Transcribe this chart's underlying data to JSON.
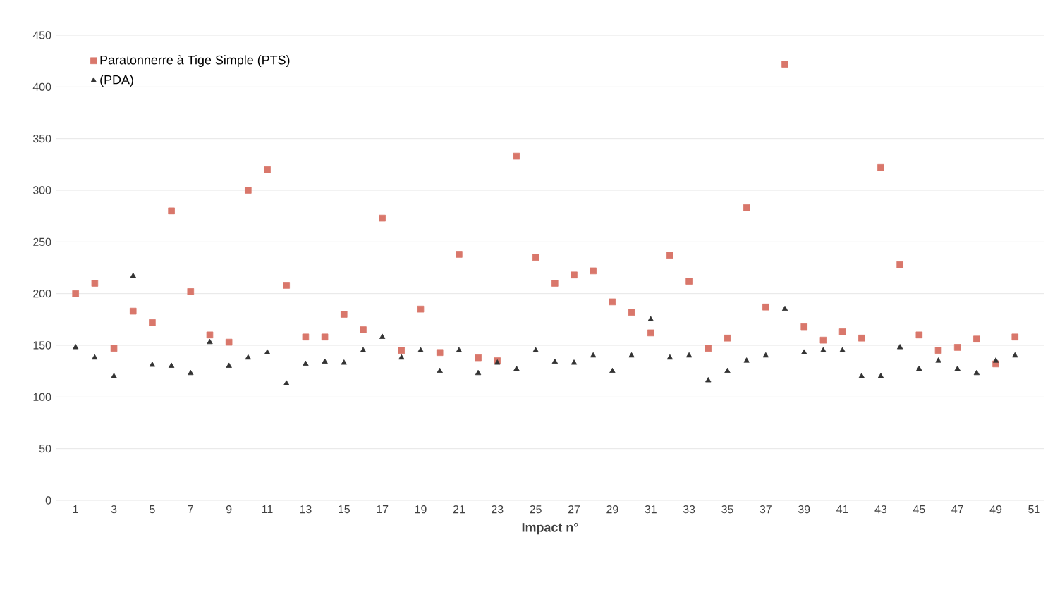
{
  "chart_data": {
    "type": "scatter",
    "xlabel": "Impact n°",
    "x": [
      1,
      2,
      3,
      4,
      5,
      6,
      7,
      8,
      9,
      10,
      11,
      12,
      13,
      14,
      15,
      16,
      17,
      18,
      19,
      20,
      21,
      22,
      23,
      24,
      25,
      26,
      27,
      28,
      29,
      30,
      31,
      32,
      33,
      34,
      35,
      36,
      37,
      38,
      39,
      40,
      41,
      42,
      43,
      44,
      45,
      46,
      47,
      48,
      49,
      50
    ],
    "series": [
      {
        "name": "Paratonnerre à Tige Simple (PTS)",
        "color": "#d9776b",
        "marker": "square",
        "values": [
          200,
          210,
          147,
          183,
          172,
          280,
          202,
          160,
          153,
          300,
          320,
          208,
          158,
          158,
          180,
          165,
          273,
          145,
          185,
          143,
          238,
          138,
          135,
          333,
          235,
          210,
          218,
          222,
          192,
          182,
          162,
          237,
          212,
          147,
          157,
          283,
          187,
          422,
          168,
          155,
          163,
          157,
          322,
          228,
          160,
          145,
          148,
          156,
          132,
          158
        ]
      },
      {
        "name": "(PDA)",
        "color": "#333333",
        "marker": "triangle",
        "values": [
          148,
          138,
          120,
          217,
          131,
          130,
          123,
          153,
          130,
          138,
          143,
          113,
          132,
          134,
          133,
          145,
          158,
          138,
          145,
          125,
          145,
          123,
          133,
          127,
          145,
          134,
          133,
          140,
          125,
          140,
          175,
          138,
          140,
          116,
          125,
          135,
          140,
          185,
          143,
          145,
          145,
          120,
          120,
          148,
          127,
          135,
          127,
          123,
          135,
          140
        ]
      }
    ],
    "xlim": [
      0,
      51.5
    ],
    "xticks": [
      1,
      3,
      5,
      7,
      9,
      11,
      13,
      15,
      17,
      19,
      21,
      23,
      25,
      27,
      29,
      31,
      33,
      35,
      37,
      39,
      41,
      43,
      45,
      47,
      49,
      51
    ],
    "ylim": [
      0,
      450
    ],
    "yticks": [
      0,
      50,
      100,
      150,
      200,
      250,
      300,
      350,
      400,
      450
    ],
    "grid": "y",
    "legend": "top left"
  }
}
